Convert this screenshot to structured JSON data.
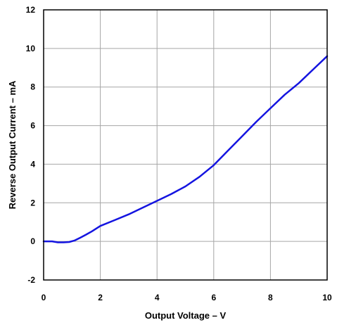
{
  "chart_data": {
    "type": "line",
    "title": "",
    "xlabel": "Output Voltage – V",
    "ylabel": "Reverse Output Current – mA",
    "xlim": [
      0,
      10
    ],
    "ylim": [
      -2,
      12
    ],
    "grid": true,
    "x_ticks": [
      "0",
      "2",
      "4",
      "6",
      "8",
      "10"
    ],
    "y_ticks": [
      "-2",
      "0",
      "2",
      "4",
      "6",
      "8",
      "10",
      "12"
    ],
    "x_tick_values": [
      0,
      2,
      4,
      6,
      8,
      10
    ],
    "y_tick_values": [
      -2,
      0,
      2,
      4,
      6,
      8,
      10,
      12
    ],
    "x_grid": [
      0,
      2,
      4,
      6,
      8,
      10
    ],
    "y_grid": [
      -2,
      0,
      2,
      4,
      6,
      8,
      10,
      12
    ],
    "series": [
      {
        "color": "#1414e0",
        "x": [
          0,
          0.3,
          0.5,
          0.7,
          0.9,
          1.1,
          1.3,
          1.5,
          1.7,
          2.0,
          2.5,
          3.0,
          3.5,
          4.0,
          4.5,
          5.0,
          5.5,
          6.0,
          6.5,
          7.0,
          7.5,
          8.0,
          8.5,
          9.0,
          9.5,
          10.0
        ],
        "y": [
          0,
          0,
          -0.05,
          -0.05,
          -0.03,
          0.05,
          0.2,
          0.35,
          0.52,
          0.8,
          1.1,
          1.4,
          1.75,
          2.1,
          2.45,
          2.85,
          3.35,
          3.95,
          4.7,
          5.45,
          6.2,
          6.9,
          7.6,
          8.2,
          8.9,
          9.6
        ]
      }
    ]
  }
}
